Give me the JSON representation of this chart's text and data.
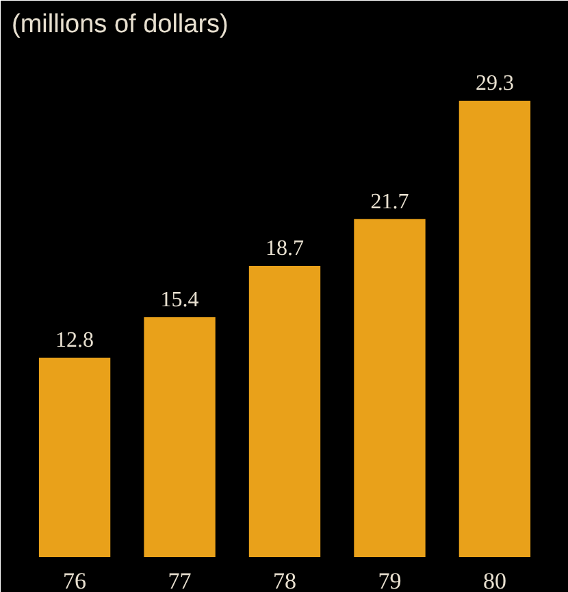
{
  "chart_data": {
    "type": "bar",
    "title": "(millions of dollars)",
    "categories": [
      "76",
      "77",
      "78",
      "79",
      "80"
    ],
    "values": [
      12.8,
      15.4,
      18.7,
      21.7,
      29.3
    ],
    "color": "#e9a11a",
    "data_labels": true,
    "grid": false
  }
}
